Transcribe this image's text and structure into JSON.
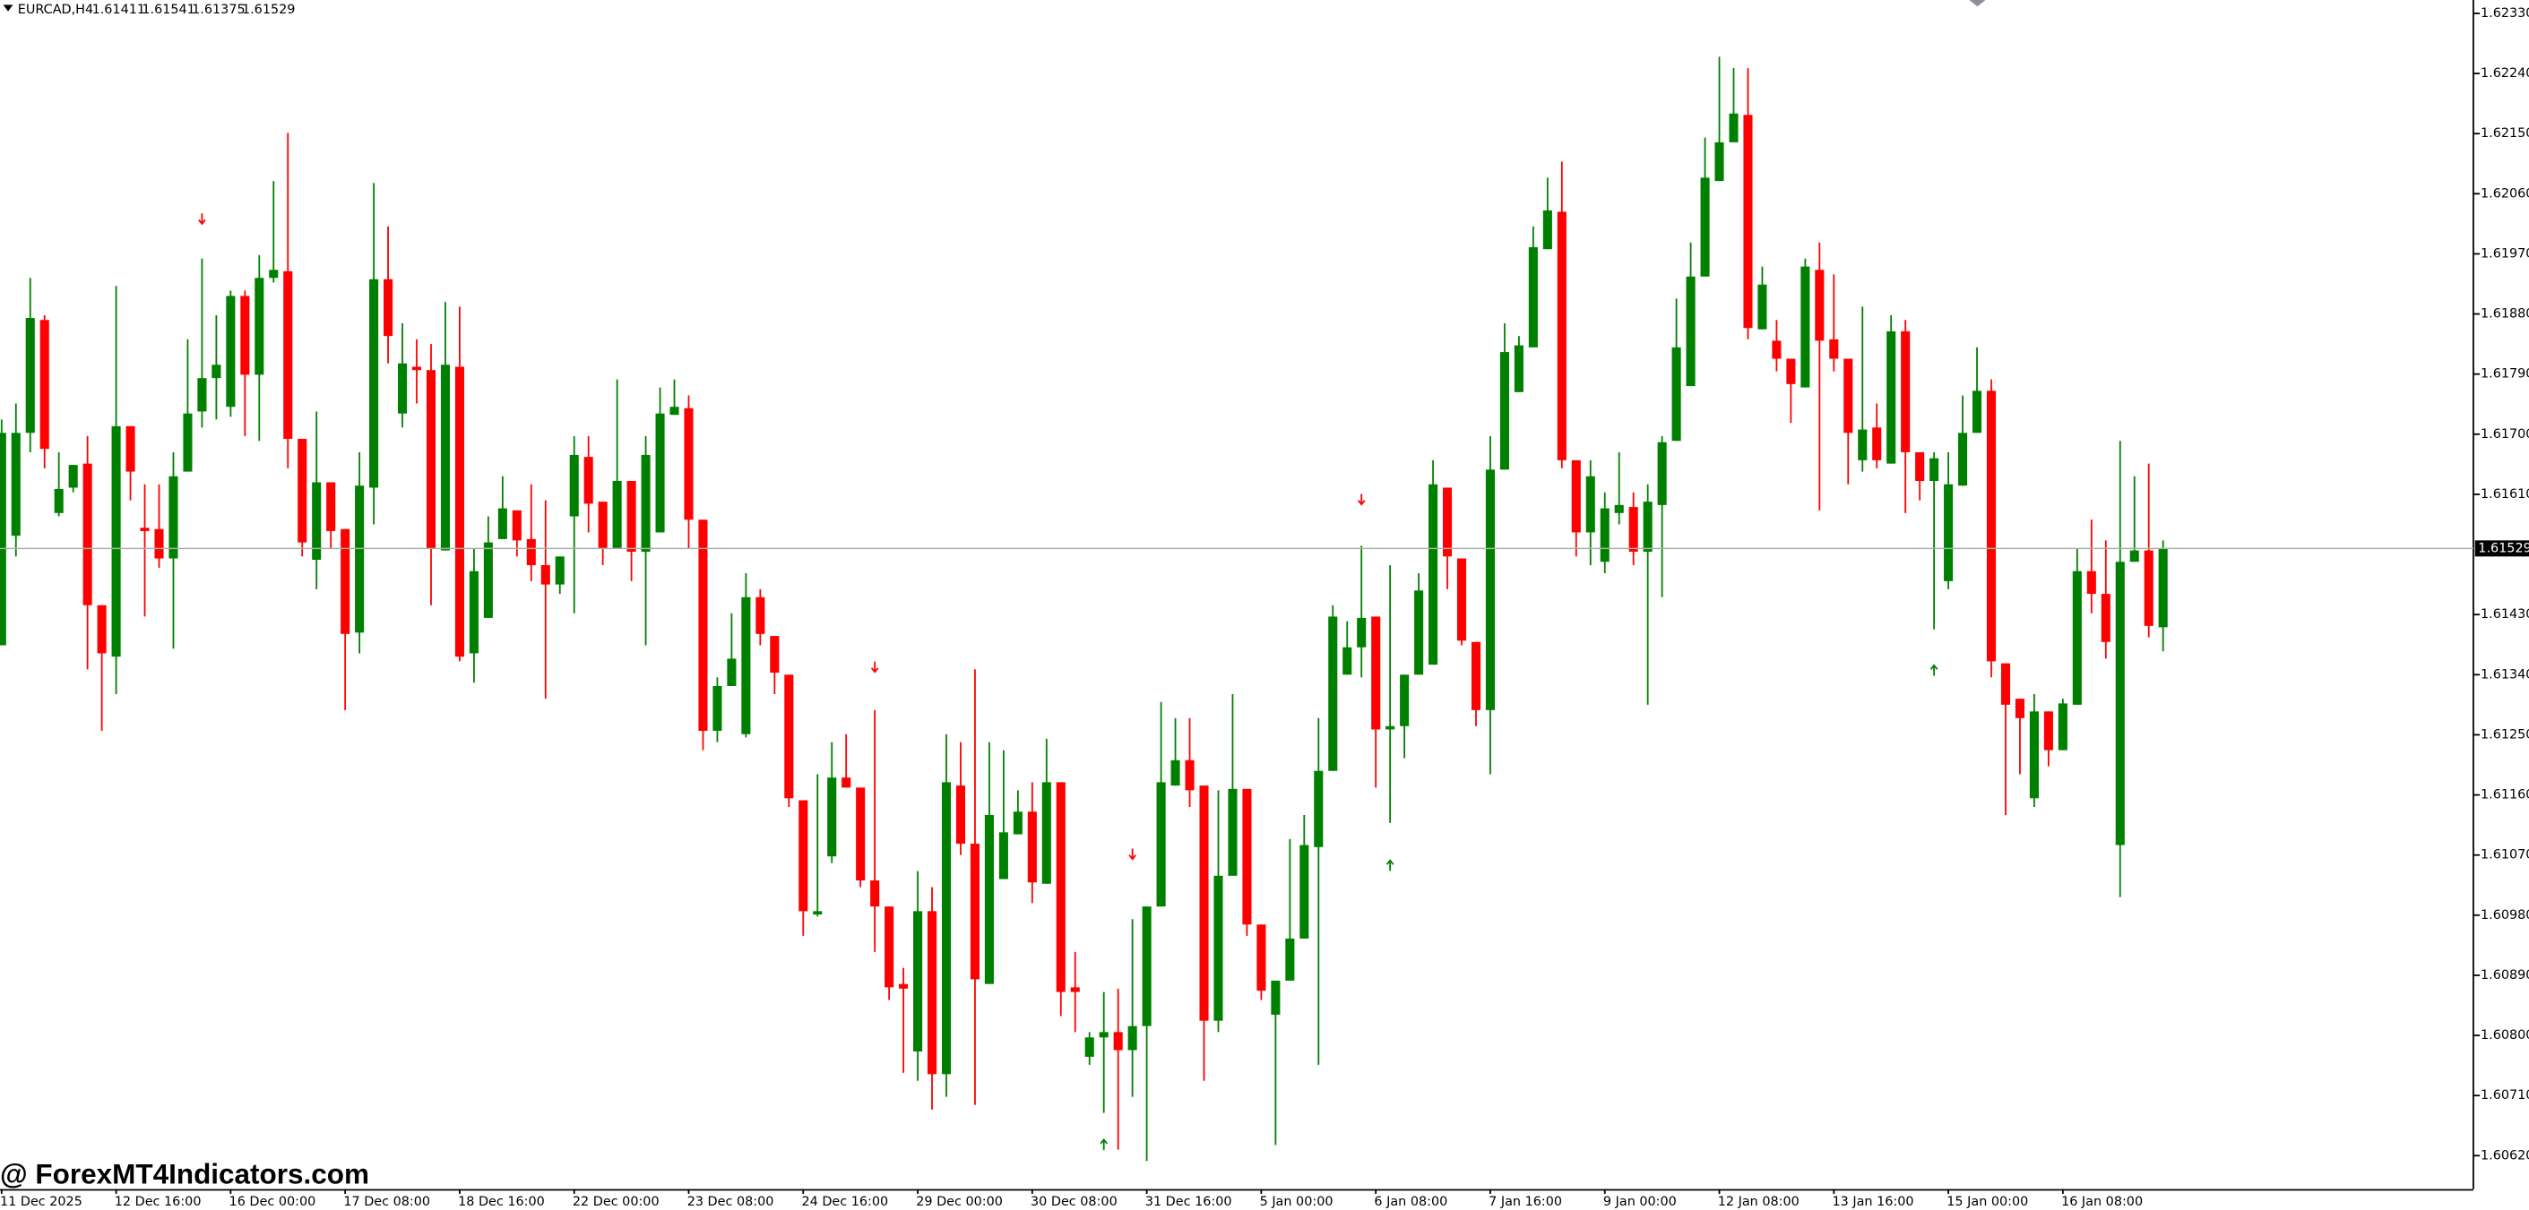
{
  "chart_data": {
    "type": "candlestick",
    "title": "EURCAD,H4",
    "watermark": "@ ForexMT4Indicators.com",
    "up_color": "#008000",
    "down_color": "#ff0000",
    "grid": false,
    "ylim": [
      1.6057,
      1.6235
    ],
    "yticks": [
      {
        "value": 1.6233,
        "label": "1.62330"
      },
      {
        "value": 1.6224,
        "label": "1.62240"
      },
      {
        "value": 1.6215,
        "label": "1.62150"
      },
      {
        "value": 1.6206,
        "label": "1.62060"
      },
      {
        "value": 1.6197,
        "label": "1.61970"
      },
      {
        "value": 1.6188,
        "label": "1.61880"
      },
      {
        "value": 1.6179,
        "label": "1.61790"
      },
      {
        "value": 1.617,
        "label": "1.61700"
      },
      {
        "value": 1.6161,
        "label": "1.61610"
      },
      {
        "value": 1.6143,
        "label": "1.61430"
      },
      {
        "value": 1.6134,
        "label": "1.61340"
      },
      {
        "value": 1.6125,
        "label": "1.61250"
      },
      {
        "value": 1.6116,
        "label": "1.61160"
      },
      {
        "value": 1.6107,
        "label": "1.61070"
      },
      {
        "value": 1.6098,
        "label": "1.60980"
      },
      {
        "value": 1.6089,
        "label": "1.60890"
      },
      {
        "value": 1.608,
        "label": "1.60800"
      },
      {
        "value": 1.6071,
        "label": "1.60710"
      },
      {
        "value": 1.6062,
        "label": "1.60620"
      }
    ],
    "categories": [
      "11 Dec 2025",
      null,
      null,
      null,
      null,
      null,
      null,
      null,
      "12 Dec 16:00",
      null,
      null,
      null,
      null,
      null,
      null,
      null,
      "16 Dec 00:00",
      null,
      null,
      null,
      null,
      null,
      null,
      null,
      "17 Dec 08:00",
      null,
      null,
      null,
      null,
      null,
      null,
      null,
      "18 Dec 16:00",
      null,
      null,
      null,
      null,
      null,
      null,
      null,
      "22 Dec 00:00",
      null,
      null,
      null,
      null,
      null,
      null,
      null,
      "23 Dec 08:00",
      null,
      null,
      null,
      null,
      null,
      null,
      null,
      "24 Dec 16:00",
      null,
      null,
      null,
      null,
      null,
      null,
      null,
      "29 Dec 00:00",
      null,
      null,
      null,
      null,
      null,
      null,
      null,
      "30 Dec 08:00",
      null,
      null,
      null,
      null,
      null,
      null,
      null,
      "31 Dec 16:00",
      null,
      null,
      null,
      null,
      null,
      null,
      null,
      "5 Jan 00:00",
      null,
      null,
      null,
      null,
      null,
      null,
      null,
      "6 Jan 08:00",
      null,
      null,
      null,
      null,
      null,
      null,
      null,
      "7 Jan 16:00",
      null,
      null,
      null,
      null,
      null,
      null,
      null,
      "9 Jan 00:00",
      null,
      null,
      null,
      null,
      null,
      null,
      null,
      "12 Jan 08:00",
      null,
      null,
      null,
      null,
      null,
      null,
      null,
      "13 Jan 16:00",
      null,
      null,
      null,
      null,
      null,
      null,
      null,
      "15 Jan 00:00",
      null,
      null,
      null,
      null,
      null,
      null,
      null,
      "16 Jan 08:00",
      null,
      null,
      null,
      null,
      null,
      null,
      null
    ],
    "open": [
      1.61384,
      1.61548,
      1.61702,
      1.61871,
      1.61582,
      1.6162,
      1.61656,
      1.61444,
      1.61367,
      1.61712,
      1.6156,
      1.61558,
      1.61514,
      1.61644,
      1.61734,
      1.61784,
      1.61741,
      1.61907,
      1.61789,
      1.61934,
      1.61944,
      1.61693,
      1.61512,
      1.61628,
      1.61558,
      1.61403,
      1.6162,
      1.61932,
      1.61731,
      1.61801,
      1.61796,
      1.61526,
      1.61801,
      1.61372,
      1.61425,
      1.61543,
      1.61586,
      1.61543,
      1.61504,
      1.61475,
      1.61577,
      1.61666,
      1.61599,
      1.61529,
      1.6163,
      1.61524,
      1.61553,
      1.61729,
      1.61739,
      1.61572,
      1.61256,
      1.61323,
      1.61251,
      1.61456,
      1.61398,
      1.6134,
      1.61152,
      1.60981,
      1.61068,
      1.61186,
      1.61171,
      1.61032,
      1.60993,
      1.60877,
      1.60776,
      1.60986,
      1.60742,
      1.61174,
      1.61087,
      1.60877,
      1.61034,
      1.61101,
      1.61135,
      1.61027,
      1.61179,
      1.60872,
      1.60768,
      1.60797,
      1.60805,
      1.60778,
      1.60814,
      1.60993,
      1.61174,
      1.61212,
      1.61174,
      1.60822,
      1.61039,
      1.61169,
      1.60966,
      1.60831,
      1.60882,
      1.60945,
      1.61082,
      1.61196,
      1.6134,
      1.61381,
      1.61427,
      1.61258,
      1.61263,
      1.6134,
      1.61355,
      1.6162,
      1.61514,
      1.61389,
      1.61287,
      1.61647,
      1.61763,
      1.6183,
      1.61977,
      1.62033,
      1.61661,
      1.61553,
      1.61509,
      1.61582,
      1.61591,
      1.61524,
      1.61594,
      1.6169,
      1.61772,
      1.61936,
      1.62079,
      1.62137,
      1.62178,
      1.61857,
      1.6184,
      1.61813,
      1.6177,
      1.61946,
      1.61842,
      1.61813,
      1.61661,
      1.6171,
      1.61656,
      1.61854,
      1.61673,
      1.6163,
      1.6148,
      1.61623,
      1.61702,
      1.61765,
      1.61357,
      1.61304,
      1.61155,
      1.61285,
      1.61227,
      1.61295,
      1.61495,
      1.61461,
      1.61085,
      1.61509,
      1.61526,
      1.61411
    ],
    "high": [
      1.61722,
      1.61746,
      1.61934,
      1.61878,
      1.61673,
      1.61654,
      1.61697,
      1.61444,
      1.61922,
      1.61712,
      1.61625,
      1.61625,
      1.61673,
      1.61842,
      1.61963,
      1.61878,
      1.61915,
      1.61915,
      1.61968,
      1.62079,
      1.62151,
      1.61693,
      1.61734,
      1.61628,
      1.61558,
      1.61673,
      1.62076,
      1.62011,
      1.61866,
      1.61842,
      1.61835,
      1.61898,
      1.61891,
      1.61529,
      1.61577,
      1.61637,
      1.61586,
      1.61625,
      1.61601,
      1.61517,
      1.61697,
      1.61697,
      1.61599,
      1.61782,
      1.6163,
      1.61697,
      1.6177,
      1.61782,
      1.61758,
      1.61572,
      1.61336,
      1.61432,
      1.61492,
      1.61468,
      1.61398,
      1.6134,
      1.61152,
      1.61191,
      1.61239,
      1.61251,
      1.61171,
      1.61287,
      1.60993,
      1.60901,
      1.61046,
      1.61022,
      1.61251,
      1.61239,
      1.61348,
      1.61239,
      1.61227,
      1.61167,
      1.61179,
      1.61244,
      1.61179,
      1.60925,
      1.60805,
      1.60865,
      1.6087,
      1.60974,
      1.60993,
      1.61299,
      1.61275,
      1.61275,
      1.61174,
      1.61167,
      1.61311,
      1.61169,
      1.60966,
      1.60882,
      1.61094,
      1.6113,
      1.61275,
      1.61444,
      1.6142,
      1.61533,
      1.61427,
      1.61504,
      1.6134,
      1.61492,
      1.61661,
      1.6162,
      1.61514,
      1.61389,
      1.61697,
      1.61866,
      1.61847,
      1.62011,
      1.62084,
      1.62108,
      1.61661,
      1.61661,
      1.61613,
      1.61673,
      1.61613,
      1.61625,
      1.61697,
      1.61903,
      1.61987,
      1.62144,
      1.62265,
      1.62248,
      1.62248,
      1.61951,
      1.61871,
      1.61813,
      1.61963,
      1.61987,
      1.61939,
      1.61813,
      1.61891,
      1.61746,
      1.61878,
      1.61871,
      1.61673,
      1.61673,
      1.61673,
      1.61758,
      1.6183,
      1.61782,
      1.61357,
      1.61304,
      1.61311,
      1.61285,
      1.61304,
      1.61529,
      1.61572,
      1.61541,
      1.6169,
      1.61637,
      1.61656,
      1.61541
    ],
    "low": [
      1.61384,
      1.61517,
      1.61673,
      1.61649,
      1.61577,
      1.61613,
      1.61348,
      1.61256,
      1.61311,
      1.61601,
      1.61427,
      1.615,
      1.61379,
      1.61644,
      1.6171,
      1.61722,
      1.61726,
      1.61697,
      1.6169,
      1.61927,
      1.61649,
      1.61517,
      1.61468,
      1.61529,
      1.61287,
      1.61372,
      1.61565,
      1.61806,
      1.6171,
      1.61746,
      1.61444,
      1.61526,
      1.6136,
      1.61328,
      1.61425,
      1.61543,
      1.61517,
      1.6148,
      1.61304,
      1.61461,
      1.61432,
      1.61553,
      1.61504,
      1.61529,
      1.6148,
      1.61384,
      1.61553,
      1.61729,
      1.61529,
      1.61227,
      1.61239,
      1.61323,
      1.61246,
      1.61384,
      1.61311,
      1.61142,
      1.60949,
      1.60978,
      1.61058,
      1.61171,
      1.61022,
      1.60925,
      1.60853,
      1.60744,
      1.60732,
      1.60689,
      1.60708,
      1.6107,
      1.60696,
      1.60877,
      1.61034,
      1.61101,
      1.60998,
      1.61027,
      1.60829,
      1.60805,
      1.60756,
      1.60684,
      1.60629,
      1.60708,
      1.60612,
      1.60993,
      1.61174,
      1.61142,
      1.60732,
      1.60805,
      1.61039,
      1.60949,
      1.60853,
      1.60636,
      1.60882,
      1.60945,
      1.60756,
      1.61196,
      1.6134,
      1.61336,
      1.61171,
      1.61118,
      1.61215,
      1.6134,
      1.61355,
      1.61468,
      1.61384,
      1.61263,
      1.61191,
      1.61647,
      1.61763,
      1.6183,
      1.61977,
      1.61649,
      1.61517,
      1.61504,
      1.61492,
      1.61565,
      1.61504,
      1.61295,
      1.61456,
      1.6169,
      1.61772,
      1.61936,
      1.62079,
      1.62137,
      1.61842,
      1.61857,
      1.61794,
      1.61717,
      1.6177,
      1.61586,
      1.61794,
      1.61625,
      1.61644,
      1.61649,
      1.61656,
      1.61582,
      1.61601,
      1.61408,
      1.61468,
      1.61623,
      1.61702,
      1.61336,
      1.6113,
      1.61191,
      1.61142,
      1.61203,
      1.61227,
      1.61295,
      1.61432,
      1.61364,
      1.61007,
      1.61509,
      1.61396,
      1.61375
    ],
    "close": [
      1.61702,
      1.61702,
      1.61874,
      1.61678,
      1.61618,
      1.61654,
      1.61444,
      1.61372,
      1.61712,
      1.61644,
      1.61555,
      1.61514,
      1.61637,
      1.61731,
      1.61784,
      1.61804,
      1.61907,
      1.61789,
      1.61934,
      1.61946,
      1.61693,
      1.61538,
      1.61628,
      1.61555,
      1.61401,
      1.61623,
      1.61932,
      1.61847,
      1.61806,
      1.61796,
      1.61529,
      1.61804,
      1.61367,
      1.61495,
      1.61538,
      1.61589,
      1.61541,
      1.61504,
      1.61475,
      1.61517,
      1.61669,
      1.61596,
      1.61529,
      1.6163,
      1.61524,
      1.61669,
      1.61731,
      1.61741,
      1.61572,
      1.61256,
      1.61323,
      1.61364,
      1.61456,
      1.61401,
      1.61343,
      1.61155,
      1.60986,
      1.60986,
      1.61186,
      1.61171,
      1.61032,
      1.60993,
      1.60872,
      1.6087,
      1.60986,
      1.60742,
      1.61179,
      1.61087,
      1.60884,
      1.6113,
      1.61104,
      1.61135,
      1.61029,
      1.61179,
      1.60865,
      1.60865,
      1.60797,
      1.60805,
      1.60778,
      1.60814,
      1.60993,
      1.61179,
      1.61212,
      1.61167,
      1.60822,
      1.61039,
      1.61169,
      1.60966,
      1.60867,
      1.60882,
      1.60945,
      1.61085,
      1.61196,
      1.61427,
      1.61381,
      1.61425,
      1.61258,
      1.61263,
      1.6134,
      1.61466,
      1.61625,
      1.61517,
      1.61391,
      1.61287,
      1.61647,
      1.61823,
      1.61833,
      1.6198,
      1.62035,
      1.61661,
      1.61553,
      1.61637,
      1.61589,
      1.61594,
      1.61524,
      1.61599,
      1.61688,
      1.6183,
      1.61936,
      1.62084,
      1.62137,
      1.6218,
      1.61859,
      1.61924,
      1.61813,
      1.61775,
      1.61951,
      1.6184,
      1.61813,
      1.61702,
      1.61707,
      1.61661,
      1.61854,
      1.61673,
      1.6163,
      1.61664,
      1.61625,
      1.61702,
      1.61765,
      1.6136,
      1.61295,
      1.61275,
      1.61285,
      1.61227,
      1.61297,
      1.61495,
      1.61461,
      1.61389,
      1.61509,
      1.61526,
      1.61413,
      1.61529
    ],
    "signals": [
      {
        "index": 14,
        "price": 1.62021,
        "direction": "down"
      },
      {
        "index": 61,
        "price": 1.6135,
        "direction": "down"
      },
      {
        "index": 79,
        "price": 1.6107,
        "direction": "down"
      },
      {
        "index": 95,
        "price": 1.61601,
        "direction": "down"
      },
      {
        "index": 77,
        "price": 1.60638,
        "direction": "up"
      },
      {
        "index": 97,
        "price": 1.61056,
        "direction": "up"
      },
      {
        "index": 135,
        "price": 1.61348,
        "direction": "up"
      }
    ]
  }
}
